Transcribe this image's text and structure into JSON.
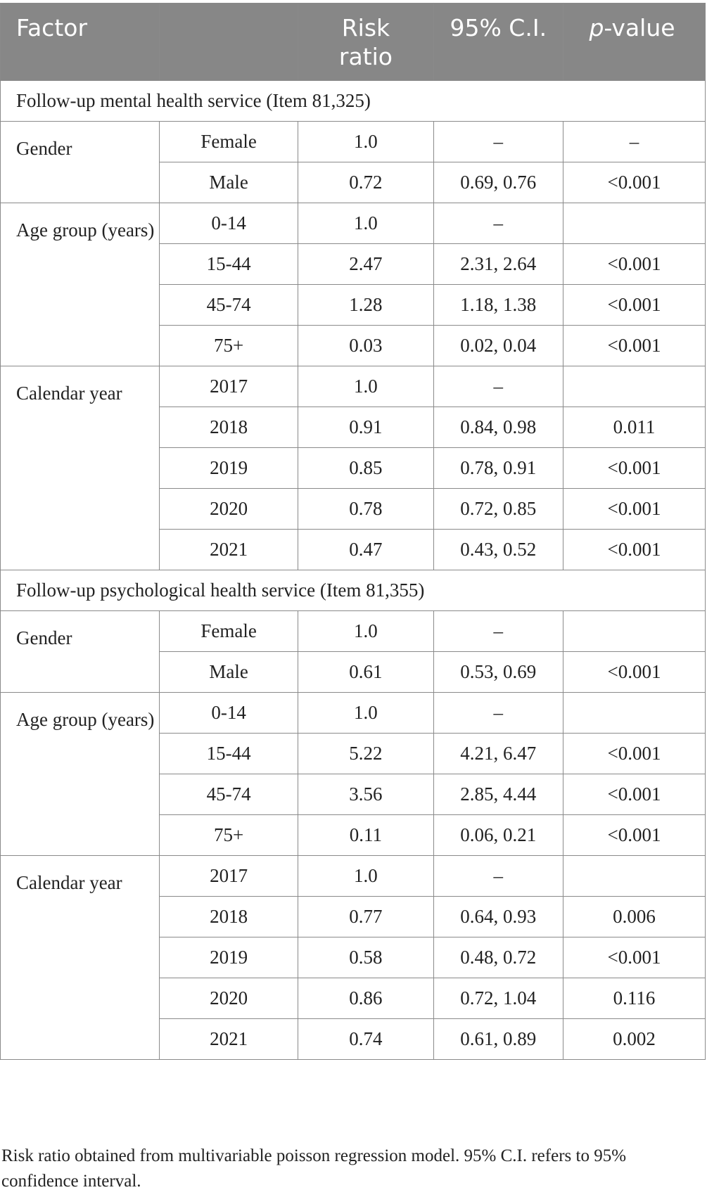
{
  "header": {
    "factor": "Factor",
    "risk_ratio": "Risk ratio",
    "ci": "95% C.I.",
    "p_italic": "p",
    "p_rest": "-value"
  },
  "sections": [
    {
      "title": "Follow-up mental health service (Item 81,325)",
      "groups": [
        {
          "factor": "Gender",
          "rows": [
            {
              "level": "Female",
              "rr": "1.0",
              "ci": "–",
              "p": "–"
            },
            {
              "level": "Male",
              "rr": "0.72",
              "ci": "0.69, 0.76",
              "p": "<0.001"
            }
          ]
        },
        {
          "factor": "Age group (years)",
          "rows": [
            {
              "level": "0-14",
              "rr": "1.0",
              "ci": "–",
              "p": ""
            },
            {
              "level": "15-44",
              "rr": "2.47",
              "ci": "2.31, 2.64",
              "p": "<0.001"
            },
            {
              "level": "45-74",
              "rr": "1.28",
              "ci": "1.18, 1.38",
              "p": "<0.001"
            },
            {
              "level": "75+",
              "rr": "0.03",
              "ci": "0.02, 0.04",
              "p": "<0.001"
            }
          ]
        },
        {
          "factor": "Calendar year",
          "rows": [
            {
              "level": "2017",
              "rr": "1.0",
              "ci": "–",
              "p": ""
            },
            {
              "level": "2018",
              "rr": "0.91",
              "ci": "0.84, 0.98",
              "p": "0.011"
            },
            {
              "level": "2019",
              "rr": "0.85",
              "ci": "0.78, 0.91",
              "p": "<0.001"
            },
            {
              "level": "2020",
              "rr": "0.78",
              "ci": "0.72, 0.85",
              "p": "<0.001"
            },
            {
              "level": "2021",
              "rr": "0.47",
              "ci": "0.43, 0.52",
              "p": "<0.001"
            }
          ]
        }
      ]
    },
    {
      "title": "Follow-up psychological health service (Item 81,355)",
      "groups": [
        {
          "factor": "Gender",
          "rows": [
            {
              "level": "Female",
              "rr": "1.0",
              "ci": "–",
              "p": ""
            },
            {
              "level": "Male",
              "rr": "0.61",
              "ci": "0.53, 0.69",
              "p": "<0.001"
            }
          ]
        },
        {
          "factor": "Age group (years)",
          "rows": [
            {
              "level": "0-14",
              "rr": "1.0",
              "ci": "–",
              "p": ""
            },
            {
              "level": "15-44",
              "rr": "5.22",
              "ci": "4.21, 6.47",
              "p": "<0.001"
            },
            {
              "level": "45-74",
              "rr": "3.56",
              "ci": "2.85, 4.44",
              "p": "<0.001"
            },
            {
              "level": "75+",
              "rr": "0.11",
              "ci": "0.06, 0.21",
              "p": "<0.001"
            }
          ]
        },
        {
          "factor": "Calendar year",
          "rows": [
            {
              "level": "2017",
              "rr": "1.0",
              "ci": "–",
              "p": ""
            },
            {
              "level": "2018",
              "rr": "0.77",
              "ci": "0.64, 0.93",
              "p": "0.006"
            },
            {
              "level": "2019",
              "rr": "0.58",
              "ci": "0.48, 0.72",
              "p": "<0.001"
            },
            {
              "level": "2020",
              "rr": "0.86",
              "ci": "0.72, 1.04",
              "p": "0.116"
            },
            {
              "level": "2021",
              "rr": "0.74",
              "ci": "0.61, 0.89",
              "p": "0.002"
            }
          ]
        }
      ]
    }
  ],
  "footnote": "Risk ratio obtained from multivariable poisson regression model. 95% C.I. refers to 95% confidence interval."
}
